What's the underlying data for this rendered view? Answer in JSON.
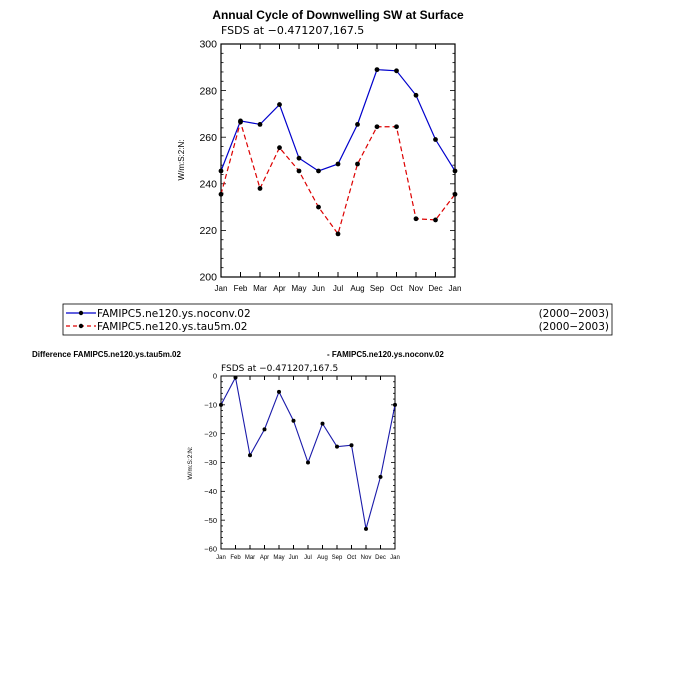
{
  "colors": {
    "noconv": "#0000cc",
    "tau5m": "#dd0000",
    "diff": "#1a1aaa",
    "marker": "#000000",
    "axis": "#000000"
  },
  "chart_data": [
    {
      "type": "line",
      "title": "Annual Cycle of Downwelling SW at Surface",
      "subtitle": "FSDS  at  −0.471207,167.5",
      "ylabel": "W/m:S:2:N:",
      "xlabel": "",
      "categories": [
        "Jan",
        "Feb",
        "Mar",
        "Apr",
        "May",
        "Jun",
        "Jul",
        "Aug",
        "Sep",
        "Oct",
        "Nov",
        "Dec",
        "Jan"
      ],
      "ylim": [
        200,
        300
      ],
      "yticks": [
        200,
        220,
        240,
        260,
        280,
        300
      ],
      "series": [
        {
          "name": "FAMIPC5.ne120.ys.noconv.02",
          "period": "(2000−2003)",
          "style": "solid",
          "color": "#0000cc",
          "values": [
            245.5,
            267,
            265.5,
            274,
            251,
            245.5,
            248.5,
            265.5,
            289,
            288.5,
            278,
            259,
            245.5
          ]
        },
        {
          "name": "FAMIPC5.ne120.ys.tau5m.02",
          "period": "(2000−2003)",
          "style": "dashed",
          "color": "#dd0000",
          "values": [
            235.5,
            266.5,
            238,
            255.5,
            245.5,
            230,
            218.5,
            248.5,
            264.5,
            264.5,
            225,
            224.5,
            235.5
          ]
        }
      ]
    },
    {
      "type": "line",
      "title_left": "Difference FAMIPC5.ne120.ys.tau5m.02",
      "title_right": "- FAMIPC5.ne120.ys.noconv.02",
      "subtitle": "FSDS  at  −0.471207,167.5",
      "ylabel": "W/m:S:2:N:",
      "xlabel": "",
      "categories": [
        "Jan",
        "Feb",
        "Mar",
        "Apr",
        "May",
        "Jun",
        "Jul",
        "Aug",
        "Sep",
        "Oct",
        "Nov",
        "Dec",
        "Jan"
      ],
      "ylim": [
        -60,
        0
      ],
      "yticks": [
        -60,
        -50,
        -40,
        -30,
        -20,
        -10,
        0
      ],
      "series": [
        {
          "name": "difference",
          "style": "solid",
          "color": "#1a1aaa",
          "values": [
            -10,
            -0.5,
            -27.5,
            -18.5,
            -5.5,
            -15.5,
            -30,
            -16.5,
            -24.5,
            -24,
            -53,
            -35,
            -10
          ]
        }
      ]
    }
  ]
}
